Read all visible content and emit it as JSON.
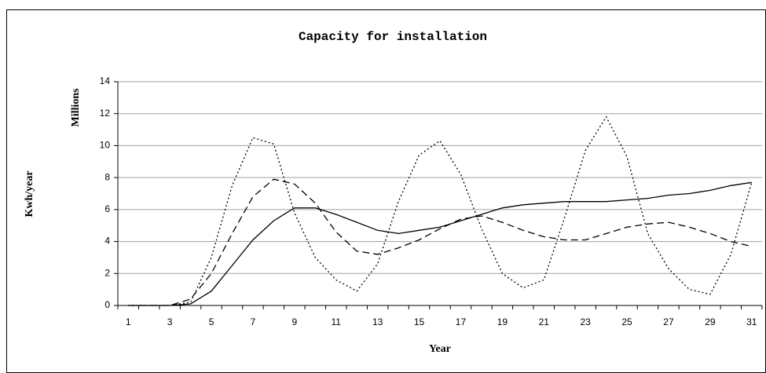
{
  "chart_data": {
    "type": "line",
    "title": "Capacity for installation",
    "ylabel": "Kwh/year",
    "yunit": "Millions",
    "xlabel": "Year",
    "categories": [
      1,
      null,
      3,
      null,
      5,
      null,
      7,
      null,
      9,
      null,
      11,
      null,
      13,
      null,
      15,
      null,
      17,
      null,
      19,
      null,
      21,
      null,
      23,
      null,
      25,
      null,
      27,
      null,
      29,
      null,
      31
    ],
    "series": [
      {
        "color": "#000000",
        "style": "solid",
        "values": [
          0,
          0,
          0,
          0.1,
          0.9,
          2.5,
          4.1,
          5.3,
          6.1,
          6.1,
          5.7,
          5.2,
          4.7,
          4.5,
          4.7,
          4.9,
          5.3,
          5.7,
          6.1,
          6.3,
          6.4,
          6.5,
          6.5,
          6.5,
          6.6,
          6.7,
          6.9,
          7.0,
          7.2,
          7.5,
          7.7
        ]
      },
      {
        "color": "#000000",
        "style": "dashed",
        "values": [
          0,
          0,
          0,
          0.4,
          2.0,
          4.5,
          6.8,
          7.9,
          7.6,
          6.4,
          4.6,
          3.4,
          3.2,
          3.6,
          4.1,
          4.8,
          5.4,
          5.6,
          5.2,
          4.7,
          4.3,
          4.1,
          4.1,
          4.5,
          4.9,
          5.1,
          5.2,
          4.9,
          4.5,
          4.0,
          3.7
        ]
      },
      {
        "color": "#000000",
        "style": "dotted",
        "values": [
          0,
          0,
          0,
          0.2,
          3.0,
          7.5,
          10.5,
          10.1,
          5.8,
          3.0,
          1.6,
          0.9,
          2.6,
          6.5,
          9.4,
          10.3,
          8.2,
          4.8,
          2.0,
          1.1,
          1.6,
          5.5,
          9.7,
          11.8,
          9.3,
          4.5,
          2.3,
          1.0,
          0.7,
          3.2,
          7.7
        ]
      }
    ],
    "ylim": [
      0,
      14
    ],
    "yticks": [
      0,
      2,
      4,
      6,
      8,
      10,
      12,
      14
    ],
    "grid": true
  }
}
